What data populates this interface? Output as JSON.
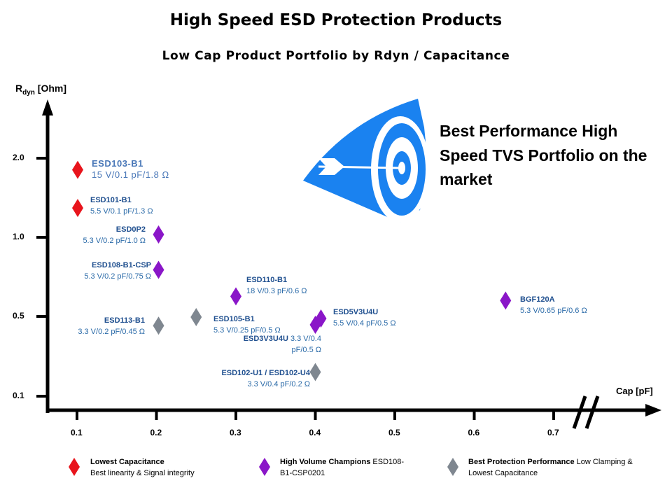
{
  "chart_data": {
    "type": "scatter",
    "title": "High Speed ESD Protection Products",
    "subtitle": "Low Cap Product Portfolio by Rdyn / Capacitance",
    "xlabel": "Cap [pF]",
    "ylabel": {
      "main": "R",
      "sub": "dyn",
      "unit": " [Ohm]"
    },
    "x_ticks": [
      "0.1",
      "0.2",
      "0.3",
      "0.4",
      "0.5",
      "0.6",
      "0.7"
    ],
    "y_ticks": [
      "2.0",
      "1.0",
      "0.5",
      "0.1"
    ],
    "xlim": [
      0.1,
      0.7
    ],
    "ylim": [
      0.1,
      2.0
    ],
    "grid": false,
    "legend_placement": "bottom",
    "categories": [
      {
        "key": "low_cap",
        "name": "Lowest Capacitance",
        "desc": "Best linearity & Signal integrity",
        "color": "#e8141c"
      },
      {
        "key": "volume",
        "name": "High Volume Champions",
        "desc": "ESD108-B1-CSP0201",
        "color": "#8a16c8"
      },
      {
        "key": "protection",
        "name": "Best Protection Performance",
        "desc": "Low Clamping & Lowest Capacitance",
        "color": "#7f8790"
      }
    ],
    "points": [
      {
        "name": "ESD103-B1",
        "spec": "15 V/0.1 pF/1.8 Ω",
        "x": 0.1,
        "y": 1.8,
        "category": "low_cap"
      },
      {
        "name": "ESD101-B1",
        "spec": "5.5 V/0.1 pF/1.3 Ω",
        "x": 0.1,
        "y": 1.3,
        "category": "low_cap"
      },
      {
        "name": "ESD0P2",
        "spec": "5.3 V/0.2 pF/1.0 Ω",
        "x": 0.2,
        "y": 1.0,
        "category": "volume"
      },
      {
        "name": "ESD108-B1-CSP",
        "spec": "5.3 V/0.2 pF/0.75 Ω",
        "x": 0.2,
        "y": 0.75,
        "category": "volume"
      },
      {
        "name": "ESD110-B1",
        "spec": "18 V/0.3 pF/0.6 Ω",
        "x": 0.3,
        "y": 0.6,
        "category": "volume"
      },
      {
        "name": "BGF120A",
        "spec": "5.3 V/0.65 pF/0.6 Ω",
        "x": 0.65,
        "y": 0.6,
        "category": "volume"
      },
      {
        "name": "ESD113-B1",
        "spec": "3.3 V/0.2 pF/0.45 Ω",
        "x": 0.2,
        "y": 0.45,
        "category": "protection"
      },
      {
        "name": "ESD105-B1",
        "spec": "5.3 V/0.25 pF/0.5 Ω",
        "x": 0.25,
        "y": 0.5,
        "category": "protection"
      },
      {
        "name": "ESD5V3U4U",
        "spec": "5.5 V/0.4 pF/0.5 Ω",
        "x": 0.4,
        "y": 0.5,
        "category": "volume"
      },
      {
        "name": "ESD3V3U4U",
        "spec": "3.3 V/0.4 pF/0.5 Ω",
        "x": 0.4,
        "y": 0.5,
        "category": "volume"
      },
      {
        "name": "ESD102-U1 / ESD102-U4",
        "spec": "3.3 V/0.4 pF/0.2 Ω",
        "x": 0.4,
        "y": 0.2,
        "category": "protection"
      }
    ]
  },
  "promo": {
    "text": "Best Performance High Speed TVS Portfolio on the market",
    "icon": "target-arrow-icon",
    "icon_color": "#1a82f0"
  }
}
